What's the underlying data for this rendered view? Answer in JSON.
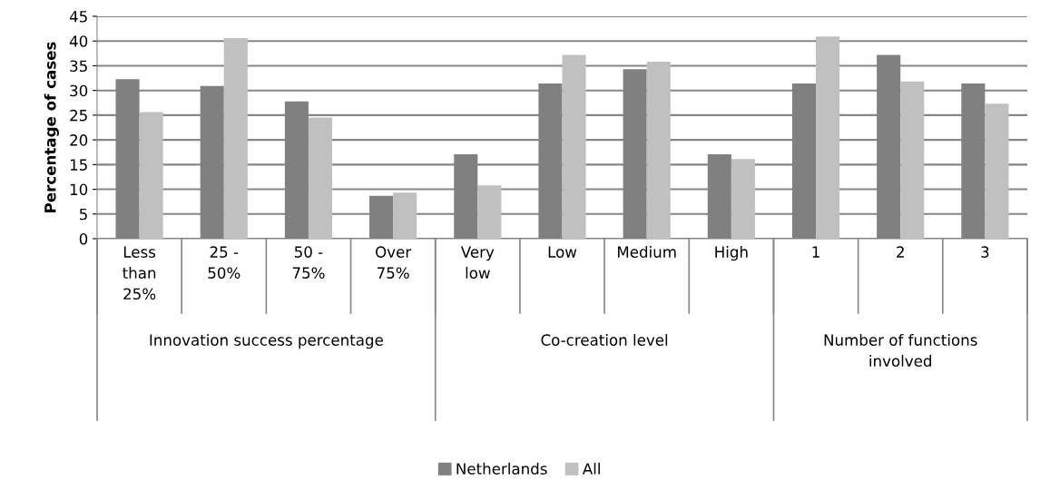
{
  "chart_data": {
    "type": "bar",
    "ylabel": "Percentage of cases",
    "categories": [
      "Less than 25%",
      "25 - 50%",
      "50 - 75%",
      "Over 75%",
      "Very low",
      "Low",
      "Medium",
      "High",
      "1",
      "2",
      "3"
    ],
    "series": [
      {
        "name": "Netherlands",
        "color": "#808080",
        "values": [
          32.3,
          30.9,
          27.8,
          8.7,
          17.1,
          31.4,
          34.3,
          17.1,
          31.4,
          37.2,
          31.4
        ]
      },
      {
        "name": "All",
        "color": "#c0c0c0",
        "values": [
          25.6,
          40.6,
          24.5,
          9.3,
          10.8,
          37.2,
          35.8,
          16.1,
          40.9,
          31.8,
          27.3
        ]
      }
    ],
    "annotations": [
      "Innovation success percentage",
      "Co-creation level",
      "Number of functions involved"
    ],
    "ylim": [
      0,
      45
    ],
    "yticks": [
      0,
      5,
      10,
      15,
      20,
      25,
      30,
      35,
      40,
      45
    ],
    "grid": "y",
    "legend": "bottom"
  }
}
